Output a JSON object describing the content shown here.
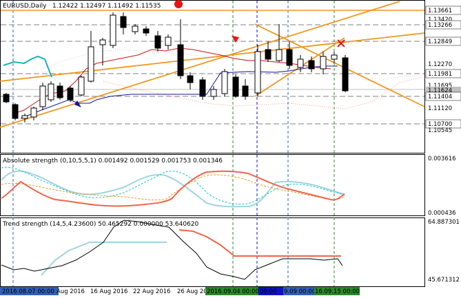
{
  "main_header": {
    "symbol": "EURUSD,Daily",
    "ohlc": "1.12422 1.12497 1.11492 1.11535"
  },
  "price_axis": {
    "labels": [
      "1.13661",
      "1.13420",
      "1.13266",
      "1.12849",
      "1.12270",
      "1.11981",
      "1.11695",
      "1.11624",
      "1.11404",
      "1.11120",
      "1.10700",
      "1.10545"
    ],
    "highlight_labels": [
      {
        "text": "1.13661",
        "bg": "#ffffff"
      },
      {
        "text": "1.13266",
        "bg": "#ffffff"
      },
      {
        "text": "1.12849",
        "bg": "#ffffff"
      },
      {
        "text": "1.11981",
        "bg": "#ffffff"
      },
      {
        "text": "1.11624",
        "bg": "#c0c0c0"
      },
      {
        "text": "1.11404",
        "bg": "#ffffff"
      },
      {
        "text": "1.10700",
        "bg": "#ffffff"
      }
    ]
  },
  "absolute_strength": {
    "header": "Absolute strength (0,10,5,5,1) 0.001492 0.001529 0.001753 0.001346",
    "top_value": "0.003616",
    "bottom_value": "0.000436"
  },
  "trend_strength": {
    "header": "Trend strength (14,5,4.23600) 50.465292 0.000000 53.640620",
    "top_value": "64.887301",
    "bottom_value": "45.671312"
  },
  "time_axis": {
    "labels": [
      {
        "text": "2016.08.07 00:00",
        "bg": "#3060b8",
        "color": "#ffffff"
      },
      {
        "text": "Aug 2016",
        "bg": "",
        "color": "#000000"
      },
      {
        "text": "16 Aug 2016",
        "bg": "",
        "color": "#000000"
      },
      {
        "text": "22 Aug 2016",
        "bg": "",
        "color": "#000000"
      },
      {
        "text": "26 Aug 20",
        "bg": "",
        "color": "#000000"
      },
      {
        "text": "2016.09.04 00:00",
        "bg": "#2a8a2a",
        "color": "#ffffff"
      },
      {
        "text": "00:00",
        "bg": "#1010c8",
        "color": "#ffffff"
      },
      {
        "text": "9.09 00:00",
        "bg": "#3060b8",
        "color": "#ffffff"
      },
      {
        "text": "16.09.15 00:00",
        "bg": "#2a8a2a",
        "color": "#ffffff"
      }
    ]
  },
  "colors": {
    "bull_candle": "#ffffff",
    "bear_candle": "#000000",
    "orange_lines": "#f0961e",
    "red_ma": "#c81414",
    "blue_line": "#1414a0",
    "teal_line": "#14b4b4",
    "salmon": "#f06446",
    "light_blue": "#a0d4e0"
  }
}
